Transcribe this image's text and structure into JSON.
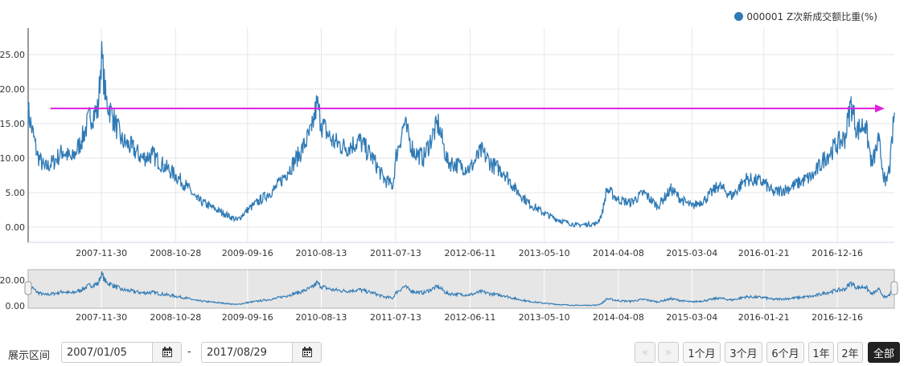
{
  "legend": {
    "label": "000001 Z次新成交额比重(%)",
    "color": "#2f7ab5"
  },
  "colors": {
    "series": "#2f7ab5",
    "reference_line": "#e020e0",
    "navigator_bg": "#e6e6e6"
  },
  "controls": {
    "range_label": "展示区间",
    "start_date": "2007/01/05",
    "end_date": "2017/08/29",
    "separator": "-",
    "prev_icon": "double-left-arrow",
    "next_icon": "double-right-arrow",
    "buttons": [
      "1个月",
      "3个月",
      "6个月",
      "1年",
      "2年",
      "全部"
    ],
    "active_button": "全部"
  },
  "chart_data": [
    {
      "type": "line",
      "title": "",
      "xlabel": "",
      "ylabel": "",
      "x_range": [
        "2007-01-05",
        "2017-08-29"
      ],
      "ylim": [
        0,
        27
      ],
      "y_ticks": [
        "0.00",
        "5.00",
        "10.00",
        "15.00",
        "20.00",
        "25.00"
      ],
      "x_ticks": [
        "2007-11-30",
        "2008-10-28",
        "2009-09-16",
        "2010-08-13",
        "2011-07-13",
        "2012-06-11",
        "2013-05-10",
        "2014-04-08",
        "2015-03-04",
        "2016-01-21",
        "2016-12-16"
      ],
      "grid": true,
      "legend": "top-right",
      "series": [
        {
          "name": "000001 Z次新成交额比重(%)",
          "points": [
            [
              "2007-01-05",
              16.8
            ],
            [
              "2007-02-15",
              10.5
            ],
            [
              "2007-03-20",
              8.5
            ],
            [
              "2007-05-01",
              9.5
            ],
            [
              "2007-06-10",
              11.0
            ],
            [
              "2007-07-20",
              9.8
            ],
            [
              "2007-09-01",
              12.5
            ],
            [
              "2007-10-10",
              16.0
            ],
            [
              "2007-11-15",
              17.0
            ],
            [
              "2007-11-30",
              25.0
            ],
            [
              "2007-12-20",
              18.5
            ],
            [
              "2008-01-20",
              16.0
            ],
            [
              "2008-03-01",
              12.5
            ],
            [
              "2008-04-15",
              11.5
            ],
            [
              "2008-06-01",
              10.0
            ],
            [
              "2008-07-15",
              10.5
            ],
            [
              "2008-09-01",
              9.0
            ],
            [
              "2008-10-28",
              7.5
            ],
            [
              "2008-12-15",
              6.0
            ],
            [
              "2009-02-01",
              4.0
            ],
            [
              "2009-04-01",
              3.0
            ],
            [
              "2009-06-01",
              2.0
            ],
            [
              "2009-08-01",
              1.0
            ],
            [
              "2009-09-16",
              2.5
            ],
            [
              "2009-11-15",
              4.0
            ],
            [
              "2010-01-15",
              5.5
            ],
            [
              "2010-03-15",
              8.0
            ],
            [
              "2010-05-15",
              11.0
            ],
            [
              "2010-07-01",
              14.0
            ],
            [
              "2010-07-25",
              18.0
            ],
            [
              "2010-08-13",
              15.0
            ],
            [
              "2010-10-01",
              12.5
            ],
            [
              "2010-12-01",
              11.5
            ],
            [
              "2011-02-01",
              12.5
            ],
            [
              "2011-04-01",
              10.0
            ],
            [
              "2011-05-20",
              7.0
            ],
            [
              "2011-07-01",
              6.0
            ],
            [
              "2011-07-13",
              10.0
            ],
            [
              "2011-08-20",
              15.0
            ],
            [
              "2011-10-01",
              11.0
            ],
            [
              "2011-11-15",
              10.0
            ],
            [
              "2011-12-15",
              12.5
            ],
            [
              "2012-01-20",
              15.0
            ],
            [
              "2012-03-01",
              9.5
            ],
            [
              "2012-04-15",
              9.0
            ],
            [
              "2012-06-11",
              8.5
            ],
            [
              "2012-08-01",
              11.0
            ],
            [
              "2012-09-20",
              9.0
            ],
            [
              "2012-11-10",
              8.0
            ],
            [
              "2013-01-01",
              5.5
            ],
            [
              "2013-03-01",
              3.5
            ],
            [
              "2013-05-10",
              2.0
            ],
            [
              "2013-07-15",
              1.0
            ],
            [
              "2013-10-01",
              0.3
            ],
            [
              "2014-01-01",
              0.5
            ],
            [
              "2014-01-25",
              2.0
            ],
            [
              "2014-02-15",
              5.5
            ],
            [
              "2014-04-08",
              4.0
            ],
            [
              "2014-06-01",
              3.5
            ],
            [
              "2014-08-01",
              5.0
            ],
            [
              "2014-10-01",
              3.0
            ],
            [
              "2014-12-01",
              5.5
            ],
            [
              "2015-01-15",
              4.0
            ],
            [
              "2015-03-04",
              3.0
            ],
            [
              "2015-05-01",
              4.0
            ],
            [
              "2015-07-01",
              6.0
            ],
            [
              "2015-09-01",
              4.5
            ],
            [
              "2015-11-01",
              7.0
            ],
            [
              "2016-01-21",
              6.5
            ],
            [
              "2016-03-01",
              5.0
            ],
            [
              "2016-05-01",
              5.5
            ],
            [
              "2016-07-01",
              6.5
            ],
            [
              "2016-09-01",
              7.5
            ],
            [
              "2016-10-20",
              10.0
            ],
            [
              "2016-12-16",
              12.0
            ],
            [
              "2017-01-20",
              13.0
            ],
            [
              "2017-02-15",
              18.0
            ],
            [
              "2017-03-15",
              14.0
            ],
            [
              "2017-04-20",
              15.0
            ],
            [
              "2017-05-20",
              9.0
            ],
            [
              "2017-06-20",
              12.5
            ],
            [
              "2017-07-20",
              6.0
            ],
            [
              "2017-08-10",
              9.0
            ],
            [
              "2017-08-29",
              16.5
            ]
          ]
        }
      ],
      "reference_line": {
        "y": 17.2,
        "from": "2007-04-15",
        "to": "2017-08-29",
        "arrow": true
      }
    },
    {
      "type": "line",
      "title": "",
      "xlabel": "",
      "ylabel": "",
      "ylim": [
        0,
        27
      ],
      "y_ticks": [
        "0.00",
        "20.00"
      ],
      "x_ticks": [
        "2007-11-30",
        "2008-10-28",
        "2009-09-16",
        "2010-08-13",
        "2011-07-13",
        "2012-06-11",
        "2013-05-10",
        "2014-04-08",
        "2015-03-04",
        "2016-01-21",
        "2016-12-16"
      ],
      "series_ref": 0
    }
  ]
}
